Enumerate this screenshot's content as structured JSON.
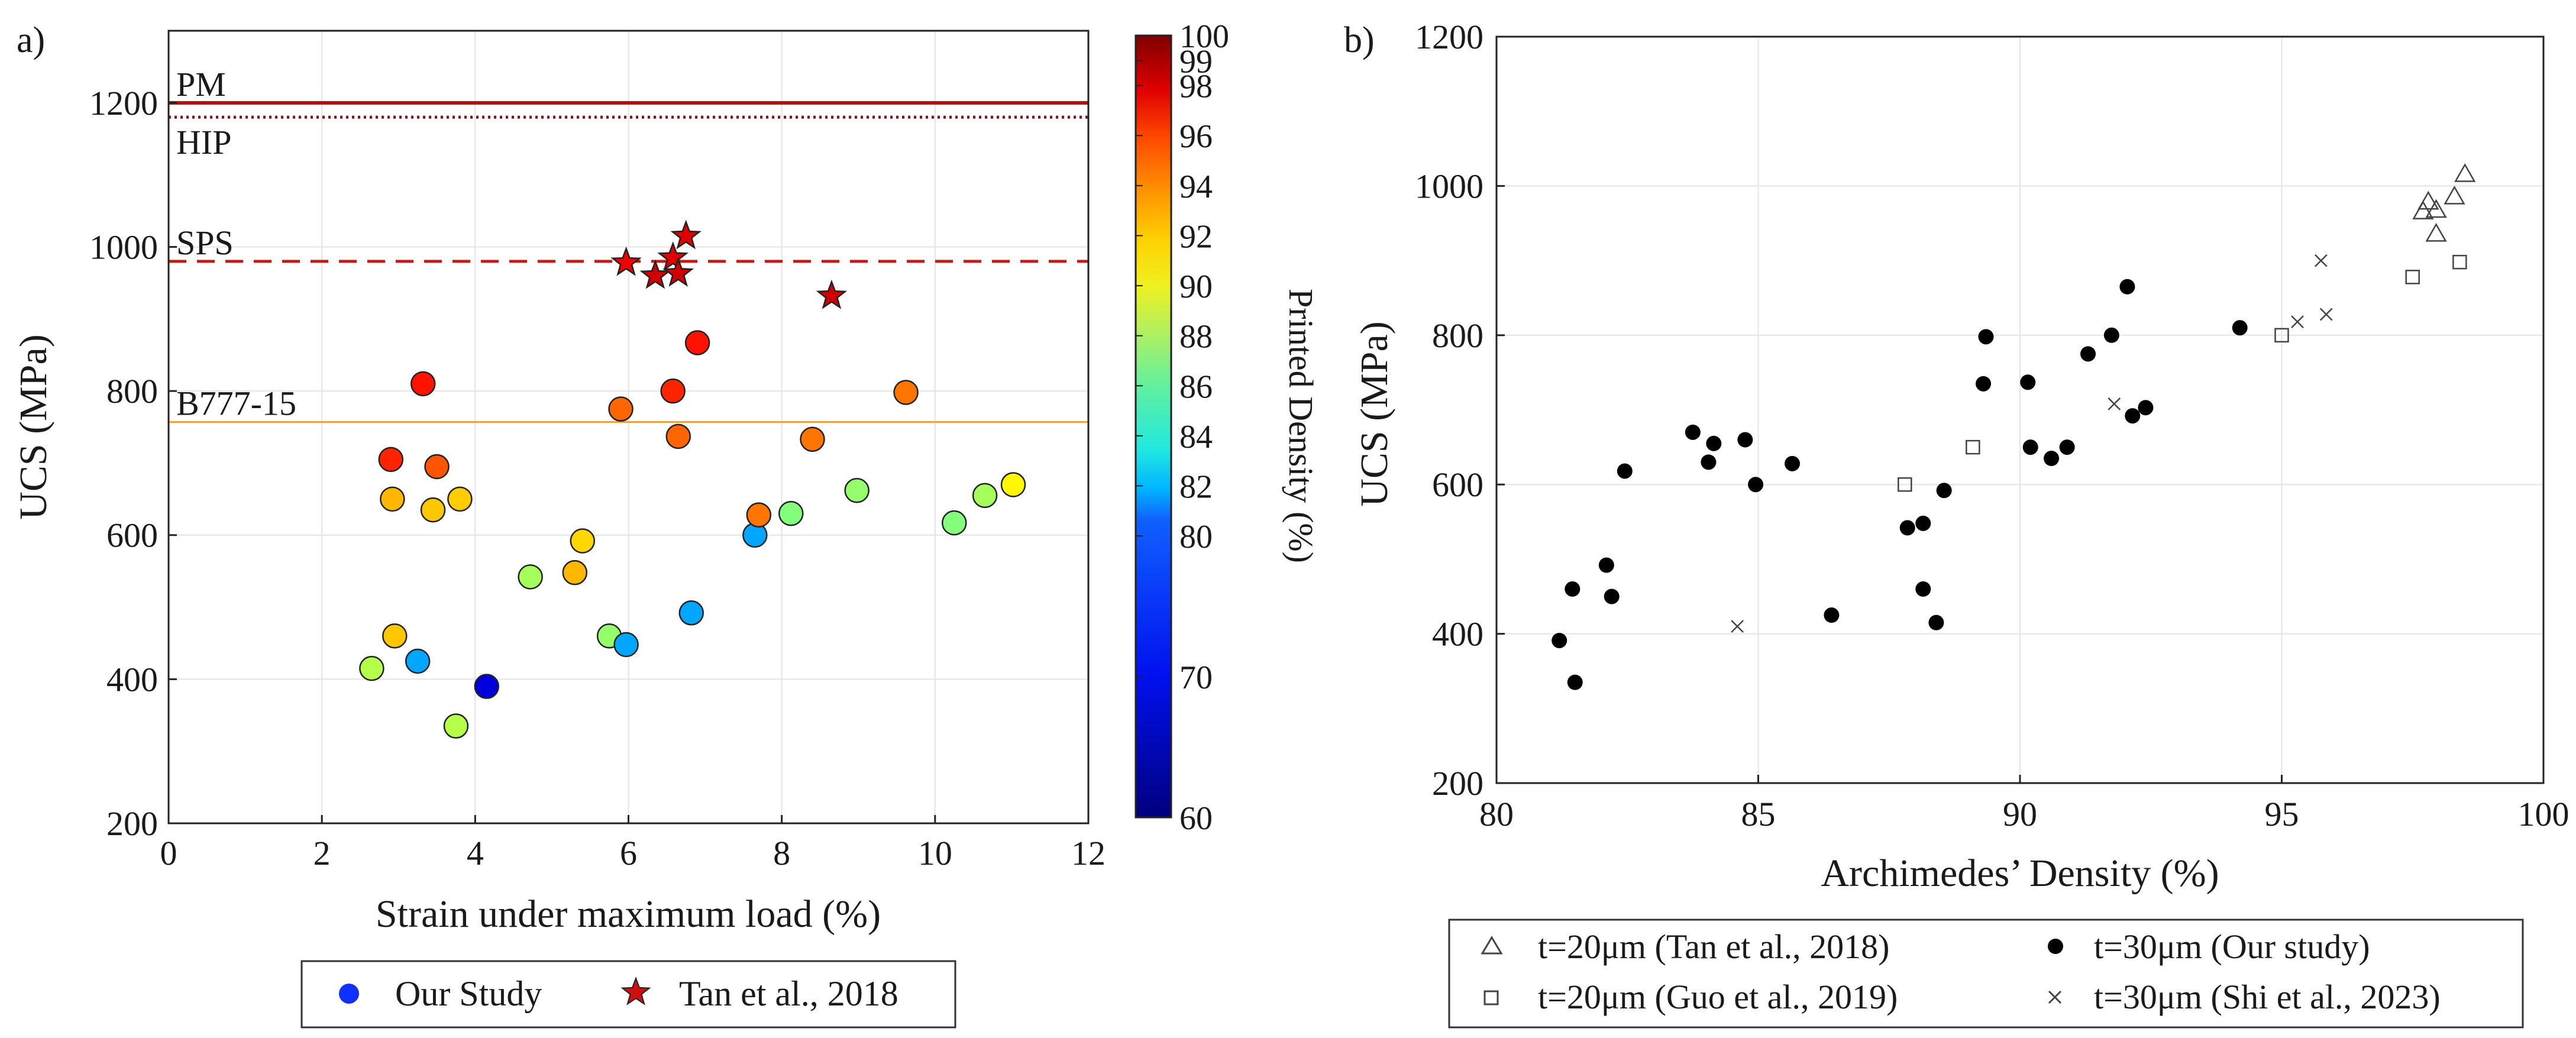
{
  "chart_data": [
    {
      "type": "scatter",
      "panel_label": "a)",
      "xlabel": "Strain under maximum load (%)",
      "ylabel": "UCS (MPa)",
      "xlim": [
        0,
        12
      ],
      "ylim": [
        200,
        1300
      ],
      "x_ticks": [
        0,
        2,
        4,
        6,
        8,
        10,
        12
      ],
      "y_ticks": [
        200,
        400,
        600,
        800,
        1000,
        1200
      ],
      "grid": true,
      "colorbar": {
        "label": "Printed Density (%)",
        "range": [
          60,
          100
        ],
        "ticks": [
          60,
          70,
          80,
          82,
          84,
          86,
          88,
          90,
          92,
          94,
          96,
          98,
          99,
          100
        ],
        "colormap": "jet (60-100, expanded 80-100)"
      },
      "reference_lines": [
        {
          "label": "PM",
          "y": 1200,
          "style": "solid",
          "color": "#b01010"
        },
        {
          "label": "HIP",
          "y": 1180,
          "style": "dotted",
          "color": "#8a1010"
        },
        {
          "label": "SPS",
          "y": 980,
          "style": "dashed",
          "color": "#c81818"
        },
        {
          "label": "B777-15",
          "y": 757,
          "style": "solid-thin",
          "color": "#f0a040"
        }
      ],
      "series": [
        {
          "name": "Our Study",
          "marker": "circle",
          "points": [
            {
              "x": 2.65,
              "y": 415,
              "density": 86.0
            },
            {
              "x": 2.9,
              "y": 705,
              "density": 95.0
            },
            {
              "x": 2.92,
              "y": 650,
              "density": 90.5
            },
            {
              "x": 2.95,
              "y": 460,
              "density": 90.0
            },
            {
              "x": 3.25,
              "y": 425,
              "density": 76.0
            },
            {
              "x": 3.32,
              "y": 810,
              "density": 95.5
            },
            {
              "x": 3.45,
              "y": 635,
              "density": 90.0
            },
            {
              "x": 3.5,
              "y": 695,
              "density": 93.5
            },
            {
              "x": 3.75,
              "y": 335,
              "density": 86.0
            },
            {
              "x": 3.8,
              "y": 650,
              "density": 89.8
            },
            {
              "x": 4.15,
              "y": 390,
              "density": 65.0
            },
            {
              "x": 4.72,
              "y": 542,
              "density": 85.5
            },
            {
              "x": 5.3,
              "y": 548,
              "density": 90.5
            },
            {
              "x": 5.4,
              "y": 592,
              "density": 89.5
            },
            {
              "x": 5.75,
              "y": 460,
              "density": 85.0
            },
            {
              "x": 5.9,
              "y": 775,
              "density": 93.0
            },
            {
              "x": 5.97,
              "y": 448,
              "density": 76.0
            },
            {
              "x": 6.58,
              "y": 800,
              "density": 95.0
            },
            {
              "x": 6.65,
              "y": 737,
              "density": 93.0
            },
            {
              "x": 6.82,
              "y": 492,
              "density": 76.0
            },
            {
              "x": 6.9,
              "y": 867,
              "density": 95.5
            },
            {
              "x": 7.65,
              "y": 600,
              "density": 76.0
            },
            {
              "x": 7.7,
              "y": 628,
              "density": 92.5
            },
            {
              "x": 8.12,
              "y": 630,
              "density": 84.5
            },
            {
              "x": 8.4,
              "y": 733,
              "density": 92.5
            },
            {
              "x": 8.98,
              "y": 662,
              "density": 85.0
            },
            {
              "x": 9.62,
              "y": 798,
              "density": 92.5
            },
            {
              "x": 10.25,
              "y": 617,
              "density": 84.5
            },
            {
              "x": 10.65,
              "y": 655,
              "density": 85.5
            },
            {
              "x": 11.02,
              "y": 670,
              "density": 88.5
            }
          ]
        },
        {
          "name": "Tan et al., 2018",
          "marker": "star",
          "points": [
            {
              "x": 5.97,
              "y": 978,
              "density": 96.5
            },
            {
              "x": 6.35,
              "y": 960,
              "density": 97.5
            },
            {
              "x": 6.58,
              "y": 985,
              "density": 97.0
            },
            {
              "x": 6.65,
              "y": 963,
              "density": 97.5
            },
            {
              "x": 6.75,
              "y": 1015,
              "density": 97.0
            },
            {
              "x": 8.65,
              "y": 932,
              "density": 97.5
            }
          ]
        }
      ],
      "legend": {
        "position": "bottom",
        "entries": [
          "Our Study",
          "Tan et al., 2018"
        ]
      }
    },
    {
      "type": "scatter",
      "panel_label": "b)",
      "xlabel": "Archimedes’ Density (%)",
      "ylabel": "UCS (MPa)",
      "xlim": [
        80,
        100
      ],
      "ylim": [
        200,
        1200
      ],
      "x_ticks": [
        80,
        85,
        90,
        95,
        100
      ],
      "y_ticks": [
        200,
        400,
        600,
        800,
        1000,
        1200
      ],
      "grid": true,
      "series": [
        {
          "name": "t=20μm (Tan et al., 2018)",
          "marker": "triangle",
          "points": [
            [
              97.7,
              965
            ],
            [
              97.8,
              978
            ],
            [
              97.95,
              967
            ],
            [
              97.95,
              935
            ],
            [
              98.3,
              985
            ],
            [
              98.5,
              1015
            ]
          ]
        },
        {
          "name": "t=30μm (Our study)",
          "marker": "filled-circle",
          "points": [
            [
              81.2,
              391
            ],
            [
              81.45,
              460
            ],
            [
              81.5,
              335
            ],
            [
              82.1,
              492
            ],
            [
              82.2,
              450
            ],
            [
              82.45,
              618
            ],
            [
              83.75,
              670
            ],
            [
              84.05,
              630
            ],
            [
              84.15,
              655
            ],
            [
              84.75,
              660
            ],
            [
              84.95,
              600
            ],
            [
              85.65,
              628
            ],
            [
              86.4,
              425
            ],
            [
              87.85,
              542
            ],
            [
              88.15,
              548
            ],
            [
              88.15,
              460
            ],
            [
              88.4,
              415
            ],
            [
              88.55,
              592
            ],
            [
              89.3,
              735
            ],
            [
              89.35,
              798
            ],
            [
              90.15,
              737
            ],
            [
              90.2,
              650
            ],
            [
              90.6,
              635
            ],
            [
              90.9,
              650
            ],
            [
              91.3,
              775
            ],
            [
              91.75,
              800
            ],
            [
              92.05,
              865
            ],
            [
              92.15,
              692
            ],
            [
              92.4,
              703
            ],
            [
              94.2,
              810
            ]
          ]
        },
        {
          "name": "t=20μm (Guo et al., 2019)",
          "marker": "open-square",
          "points": [
            [
              87.8,
              600
            ],
            [
              89.1,
              650
            ],
            [
              95.0,
              800
            ],
            [
              97.5,
              878
            ],
            [
              98.4,
              898
            ]
          ]
        },
        {
          "name": "t=30μm (Shi et al., 2023)",
          "marker": "x",
          "points": [
            [
              84.6,
              410
            ],
            [
              91.8,
              708
            ],
            [
              95.3,
              818
            ],
            [
              95.75,
              900
            ],
            [
              95.85,
              828
            ]
          ]
        }
      ],
      "legend": {
        "position": "bottom",
        "entries": [
          "t=20μm (Tan et al., 2018)",
          "t=30μm (Our study)",
          "t=20μm (Guo et al., 2019)",
          "t=30μm (Shi et al., 2023)"
        ]
      }
    }
  ]
}
